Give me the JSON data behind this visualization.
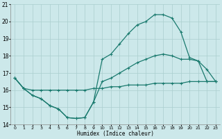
{
  "xlabel": "Humidex (Indice chaleur)",
  "background_color": "#cce8ea",
  "grid_color": "#aacece",
  "line_color": "#1a7a6e",
  "xlim": [
    -0.5,
    23.5
  ],
  "ylim": [
    14,
    21
  ],
  "yticks": [
    14,
    15,
    16,
    17,
    18,
    19,
    20,
    21
  ],
  "xticks": [
    0,
    1,
    2,
    3,
    4,
    5,
    6,
    7,
    8,
    9,
    10,
    11,
    12,
    13,
    14,
    15,
    16,
    17,
    18,
    19,
    20,
    21,
    22,
    23
  ],
  "series": [
    {
      "x": [
        0,
        1,
        2,
        3,
        4,
        5,
        6,
        7,
        8,
        9,
        10,
        11,
        12,
        13,
        14,
        15,
        16,
        17,
        18,
        19,
        20,
        21,
        22,
        23
      ],
      "y": [
        16.7,
        16.1,
        16.0,
        16.0,
        16.0,
        16.0,
        16.0,
        16.0,
        16.0,
        16.1,
        16.1,
        16.2,
        16.2,
        16.3,
        16.3,
        16.3,
        16.4,
        16.4,
        16.4,
        16.4,
        16.5,
        16.5,
        16.5,
        16.5
      ]
    },
    {
      "x": [
        0,
        1,
        2,
        3,
        4,
        5,
        6,
        7,
        8,
        9,
        10,
        11,
        12,
        13,
        14,
        15,
        16,
        17,
        18,
        19,
        20,
        21,
        22,
        23
      ],
      "y": [
        16.7,
        16.1,
        15.7,
        15.5,
        15.1,
        14.9,
        14.4,
        14.35,
        14.4,
        15.3,
        16.5,
        16.7,
        17.0,
        17.3,
        17.6,
        17.8,
        18.0,
        18.1,
        18.0,
        17.8,
        17.8,
        17.7,
        17.2,
        16.5
      ]
    },
    {
      "x": [
        0,
        1,
        2,
        3,
        4,
        5,
        6,
        7,
        8,
        9,
        10,
        11,
        12,
        13,
        14,
        15,
        16,
        17,
        18,
        19,
        20,
        21,
        22,
        23
      ],
      "y": [
        16.7,
        16.1,
        15.7,
        15.5,
        15.1,
        14.9,
        14.4,
        14.35,
        14.4,
        15.3,
        17.8,
        18.1,
        18.7,
        19.3,
        19.8,
        20.0,
        20.4,
        20.4,
        20.2,
        19.4,
        17.9,
        17.7,
        16.5,
        16.5
      ]
    }
  ]
}
